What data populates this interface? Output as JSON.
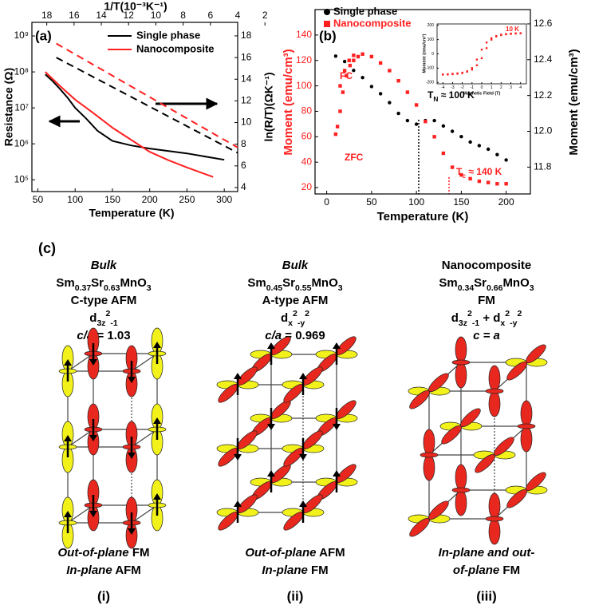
{
  "chart_data": [
    {
      "type": "line",
      "label": "(a)",
      "x_label": "Temperature (K)",
      "y_label": "Resistance (Ω)",
      "y2_label": "ln(R/T)(ΩK⁻¹)",
      "x2_label": "1/T(10⁻³K⁻¹)",
      "xlim": [
        42,
        318
      ],
      "xticks": [
        50,
        100,
        150,
        200,
        250,
        300
      ],
      "ylim": [
        47000,
        2390000000
      ],
      "y_log": true,
      "yticks": [
        {
          "value": 100000,
          "label": "10⁵"
        },
        {
          "value": 1000000,
          "label": "10⁶"
        },
        {
          "value": 10000000,
          "label": "10⁷"
        },
        {
          "value": 100000000,
          "label": "10⁸"
        },
        {
          "value": 1000000000,
          "label": "10⁹"
        }
      ],
      "y2lim": [
        3.63,
        19.25
      ],
      "y2ticks": [
        4,
        6,
        8,
        10,
        12,
        14,
        16,
        18
      ],
      "x2lim": [
        19.09,
        4
      ],
      "x2ticks": [
        18,
        16,
        14,
        12,
        10,
        8,
        6,
        4,
        2
      ],
      "series": [
        {
          "name": "Single phase",
          "color": "#000000",
          "x": [
            60,
            70,
            80,
            90,
            100,
            115,
            130,
            150,
            175,
            200,
            250,
            300
          ],
          "values": [
            85000000,
            55000000,
            33000000,
            19000000,
            10000000,
            5000000,
            2300000,
            1200000,
            900000,
            740000,
            540000,
            360000
          ]
        },
        {
          "name": "Nanocomposite",
          "color": "#ff2020",
          "x": [
            60,
            80,
            100,
            125,
            150,
            175,
            200,
            225,
            250,
            285
          ],
          "values": [
            100000000,
            40000000,
            17000000,
            7000000,
            2800000,
            1300000,
            600000,
            350000,
            220000,
            120000
          ]
        },
        {
          "color": "#000000",
          "dash": true,
          "axis": "y2",
          "x_axis": "x2",
          "x": [
            17.3,
            4
          ],
          "values": [
            16.0,
            7.2
          ]
        },
        {
          "color": "#ff2020",
          "dash": true,
          "axis": "y2",
          "x_axis": "x2",
          "x": [
            17.3,
            4
          ],
          "values": [
            17.3,
            7.7
          ]
        }
      ]
    },
    {
      "type": "scatter",
      "label": "(b)",
      "x_label": "Temperature (K)",
      "y_label": "Moment (emu/cm³)",
      "y_label_color": "#ff2020",
      "y2_label": "Moment (emu/cm³)",
      "xlim": [
        -13,
        227
      ],
      "xticks": [
        0,
        50,
        100,
        150,
        200
      ],
      "ylim": [
        15,
        160
      ],
      "yticks": [
        20,
        40,
        60,
        80,
        100,
        120,
        140
      ],
      "y2lim": [
        11.65,
        12.68
      ],
      "y2ticks": [
        11.8,
        {
          "value": 12,
          "label": "12.0"
        },
        12.2,
        12.4,
        12.6
      ],
      "annotations": [
        {
          "segments": [
            {
              "text": "FC"
            }
          ],
          "color": "#ff2020"
        },
        {
          "segments": [
            {
              "text": "ZFC"
            }
          ],
          "color": "#ff2020"
        },
        {
          "segments": [
            {
              "text": "T"
            },
            {
              "text": "N",
              "pos": "sub"
            },
            {
              "text": " ≈ 100 K"
            }
          ],
          "color": "#000000"
        },
        {
          "segments": [
            {
              "text": "T"
            },
            {
              "text": "c",
              "pos": "sub"
            },
            {
              "text": " ≈ 140 K"
            }
          ],
          "color": "#ff2020"
        }
      ],
      "series": [
        {
          "name": "Single phase",
          "color": "#000000",
          "marker": "circle",
          "axis": "y2",
          "x": [
            10,
            20,
            30,
            40,
            50,
            60,
            70,
            80,
            90,
            100,
            110,
            120,
            130,
            140,
            150,
            160,
            170,
            180,
            190,
            200
          ],
          "values": [
            12.42,
            12.39,
            12.34,
            12.3,
            12.25,
            12.21,
            12.16,
            12.1,
            12.06,
            12.04,
            12.06,
            12.06,
            12.03,
            12.0,
            11.97,
            11.94,
            11.92,
            11.9,
            11.87,
            11.84
          ]
        },
        {
          "name": "Nanocomposite",
          "color": "#ff2020",
          "marker": "square",
          "x": [
            15,
            20,
            25,
            30,
            40,
            50,
            60,
            70,
            80,
            90,
            100,
            110,
            120,
            130,
            140,
            150,
            160,
            170,
            180,
            190,
            200,
            10,
            12,
            15,
            18,
            22,
            26,
            30,
            35
          ],
          "values": [
            100,
            112,
            120,
            124,
            125,
            123,
            118,
            112,
            104,
            95,
            85,
            72,
            60,
            47,
            36,
            30,
            27,
            25,
            24,
            23,
            23,
            62,
            68,
            80,
            95,
            108,
            116,
            120,
            123
          ]
        }
      ]
    },
    {
      "type": "scatter",
      "y_label": "Moment (emu/cm³)",
      "x_label": "Magnetic Field (T)",
      "xlim": [
        -4.6,
        4.6
      ],
      "xticks": [
        -4,
        -3,
        -2,
        -1,
        0,
        1,
        2,
        3,
        4
      ],
      "ylim": [
        -210,
        210
      ],
      "yticks": [
        -200,
        -100,
        0,
        100,
        200
      ],
      "annotations": [
        {
          "segments": [
            {
              "text": "10 K"
            }
          ],
          "color": "#ff2020"
        }
      ],
      "series": [
        {
          "color": "#ff2020",
          "marker": "square",
          "x": [
            -4,
            -3.5,
            -3,
            -2.5,
            -2,
            -1.5,
            -1,
            -0.5,
            0,
            0.5,
            1,
            1.5,
            2,
            2.5,
            3,
            3.5,
            4
          ],
          "values": [
            -145,
            -144,
            -142,
            -139,
            -135,
            -125,
            -110,
            -80,
            -30,
            40,
            100,
            122,
            132,
            137,
            140,
            143,
            145
          ]
        },
        {
          "color": "#ff2020",
          "marker": "square",
          "x": [
            4,
            3.5,
            3,
            2.5,
            2,
            1.5,
            1,
            0.5,
            0,
            -0.5,
            -1,
            -1.5,
            -2,
            -2.5,
            -3,
            -3.5,
            -4
          ],
          "values": [
            145,
            144,
            142,
            139,
            135,
            125,
            110,
            80,
            30,
            -40,
            -100,
            -122,
            -132,
            -137,
            -140,
            -143,
            -145
          ]
        }
      ]
    }
  ],
  "panel_c": {
    "label": "(c)",
    "columns": [
      {
        "lines": [
          [
            {
              "text": "Bulk",
              "italic": true
            }
          ],
          [
            {
              "text": "Sm"
            },
            {
              "text": "0.37",
              "pos": "sub"
            },
            {
              "text": "Sr"
            },
            {
              "text": "0.63",
              "pos": "sub"
            },
            {
              "text": "MnO"
            },
            {
              "text": "3",
              "pos": "sub"
            }
          ],
          [
            {
              "text": "C-type AFM"
            }
          ],
          [
            {
              "text": "d"
            },
            {
              "text": "3z",
              "pos": "sub"
            },
            {
              "text": "2",
              "pos": "sup"
            },
            {
              "text": "-1",
              "pos": "sub"
            }
          ],
          [
            {
              "text": "c/a",
              "italic": true
            },
            {
              "text": " = 1.03"
            }
          ]
        ],
        "caption": [
          [
            {
              "text": "Out-of-plane",
              "italic": true
            },
            {
              "text": " FM"
            }
          ],
          [
            {
              "text": "In-plane",
              "italic": true
            },
            {
              "text": " AFM"
            }
          ]
        ],
        "numeral": "(i)"
      },
      {
        "lines": [
          [
            {
              "text": "Bulk",
              "italic": true
            }
          ],
          [
            {
              "text": "Sm"
            },
            {
              "text": "0.45",
              "pos": "sub"
            },
            {
              "text": "Sr"
            },
            {
              "text": "0.55",
              "pos": "sub"
            },
            {
              "text": "MnO"
            },
            {
              "text": "3",
              "pos": "sub"
            }
          ],
          [
            {
              "text": "A-type AFM"
            }
          ],
          [
            {
              "text": "d"
            },
            {
              "text": "x",
              "pos": "sub"
            },
            {
              "text": "2",
              "pos": "sup"
            },
            {
              "text": "-y",
              "pos": "sub"
            },
            {
              "text": "2",
              "pos": "sup"
            }
          ],
          [
            {
              "text": "c/a",
              "italic": true
            },
            {
              "text": " = 0.969"
            }
          ]
        ],
        "caption": [
          [
            {
              "text": "Out-of-plane",
              "italic": true
            },
            {
              "text": " AFM"
            }
          ],
          [
            {
              "text": "In-plane",
              "italic": true
            },
            {
              "text": " FM"
            }
          ]
        ],
        "numeral": "(ii)"
      },
      {
        "lines": [
          [
            {
              "text": "Nanocomposite"
            }
          ],
          [
            {
              "text": "Sm"
            },
            {
              "text": "0.34",
              "pos": "sub"
            },
            {
              "text": "Sr"
            },
            {
              "text": "0.66",
              "pos": "sub"
            },
            {
              "text": "MnO"
            },
            {
              "text": "3",
              "pos": "sub"
            }
          ],
          [
            {
              "text": "FM"
            }
          ],
          [
            {
              "text": "d"
            },
            {
              "text": "3z",
              "pos": "sub"
            },
            {
              "text": "2",
              "pos": "sup"
            },
            {
              "text": "-1",
              "pos": "sub"
            },
            {
              "text": " + d"
            },
            {
              "text": "x",
              "pos": "sub"
            },
            {
              "text": "2",
              "pos": "sup"
            },
            {
              "text": "-y",
              "pos": "sub"
            },
            {
              "text": "2",
              "pos": "sup"
            }
          ],
          [
            {
              "text": "c = a",
              "italic": true
            }
          ]
        ],
        "caption": [
          [
            {
              "text": "In-plane and out-",
              "italic": true
            }
          ],
          [
            {
              "text": "of-plane",
              "italic": true
            },
            {
              "text": " FM"
            }
          ]
        ],
        "numeral": "(iii)"
      }
    ]
  }
}
